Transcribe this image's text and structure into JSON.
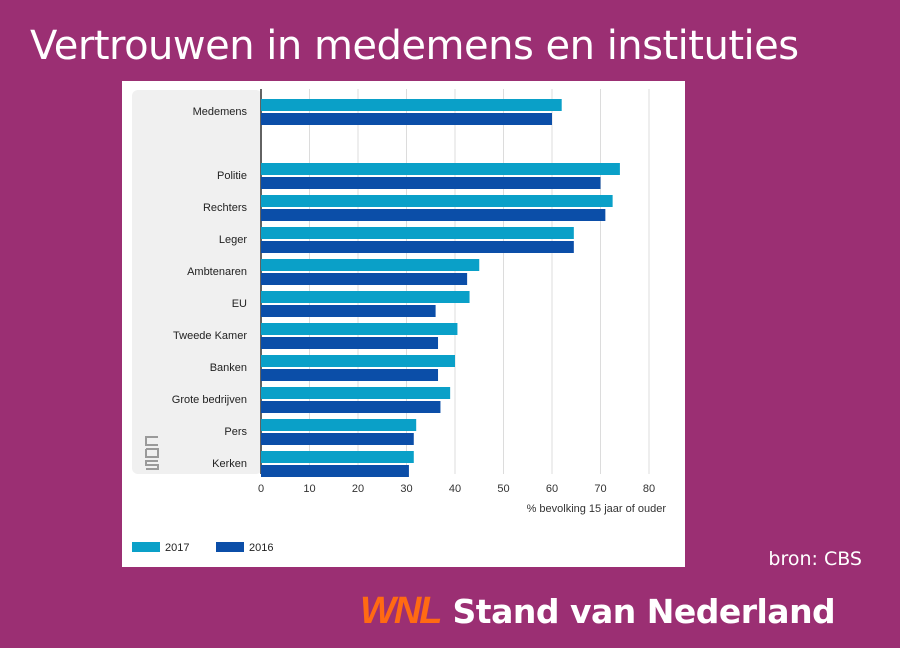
{
  "title": "Vertrouwen in medemens en instituties",
  "source_label": "bron: CBS",
  "brand": {
    "logo_text": "WNL",
    "name": "Stand van Nederland"
  },
  "colors": {
    "background": "#9b2f73",
    "series_2017": "#0aa0c8",
    "series_2016": "#0b4ea8",
    "logo": "#ff6a13"
  },
  "chart_data": {
    "type": "bar",
    "orientation": "horizontal",
    "categories": [
      "Medemens",
      "Politie",
      "Rechters",
      "Leger",
      "Ambtenaren",
      "EU",
      "Tweede Kamer",
      "Banken",
      "Grote bedrijven",
      "Pers",
      "Kerken"
    ],
    "series": [
      {
        "name": "2017",
        "values": [
          62,
          74,
          72.5,
          64.5,
          45,
          43,
          40.5,
          40,
          39,
          32,
          31.5
        ]
      },
      {
        "name": "2016",
        "values": [
          60,
          70,
          71,
          64.5,
          42.5,
          36,
          36.5,
          36.5,
          37,
          31.5,
          30.5
        ]
      }
    ],
    "xlabel": "% bevolking 15 jaar of ouder",
    "xlim": [
      0,
      80
    ],
    "xticks": [
      0,
      10,
      20,
      30,
      40,
      50,
      60,
      70,
      80
    ],
    "grid": true,
    "legend_position": "bottom-left"
  }
}
